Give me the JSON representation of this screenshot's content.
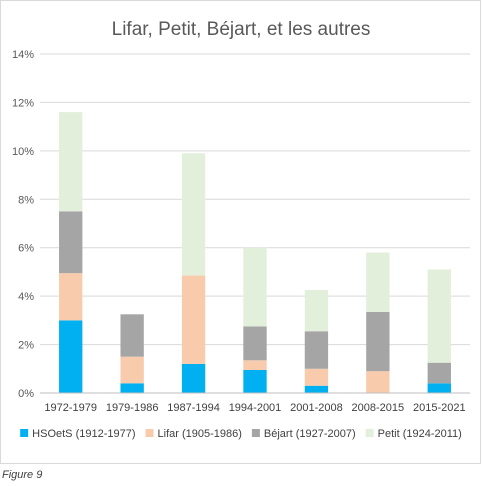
{
  "caption": "Figure 9",
  "chart_data": {
    "type": "bar",
    "stacked": true,
    "title": "Lifar, Petit, Béjart, et les autres",
    "xlabel": "",
    "ylabel": "",
    "ylim": [
      0,
      14
    ],
    "yticks": [
      0,
      2,
      4,
      6,
      8,
      10,
      12,
      14
    ],
    "ytick_suffix": "%",
    "grid": true,
    "legend_position": "bottom",
    "categories": [
      "1972-1979",
      "1979-1986",
      "1987-1994",
      "1994-2001",
      "2001-2008",
      "2008-2015",
      "2015-2021"
    ],
    "series": [
      {
        "name": "HSOetS (1912-1977)",
        "color": "#00b0f0",
        "values": [
          3.0,
          0.4,
          1.2,
          0.95,
          0.3,
          0.0,
          0.4
        ]
      },
      {
        "name": "Lifar (1905-1986)",
        "color": "#f8cbad",
        "values": [
          1.95,
          1.1,
          3.65,
          0.4,
          0.7,
          0.9,
          0.0
        ]
      },
      {
        "name": "Béjart (1927-2007)",
        "color": "#a5a5a5",
        "values": [
          2.55,
          1.75,
          0.0,
          1.4,
          1.55,
          2.45,
          0.85
        ]
      },
      {
        "name": "Petit (1924-2011)",
        "color": "#e2efda",
        "values": [
          4.1,
          0.0,
          5.05,
          3.25,
          1.7,
          2.45,
          3.85
        ]
      }
    ]
  }
}
